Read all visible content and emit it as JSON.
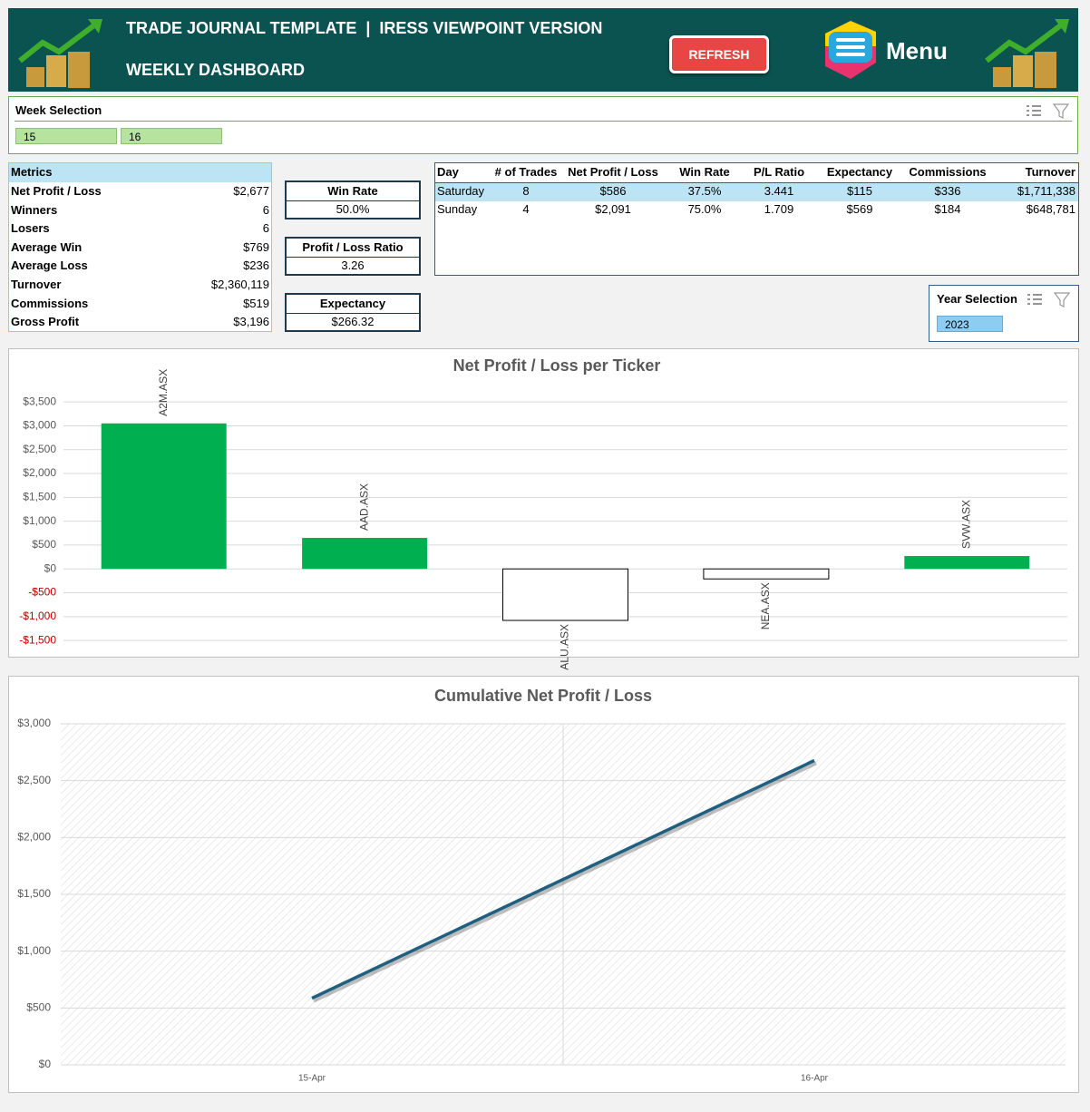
{
  "header": {
    "title": "TRADE JOURNAL TEMPLATE  |  IRESS VIEWPOINT VERSION",
    "subtitle": "WEEKLY DASHBOARD",
    "refresh": "REFRESH",
    "menu": "Menu"
  },
  "week_slicer": {
    "title": "Week Selection",
    "items": [
      "15",
      "16"
    ]
  },
  "metrics": {
    "title": "Metrics",
    "rows": [
      [
        "Net Profit / Loss",
        "$2,677"
      ],
      [
        "Winners",
        "6"
      ],
      [
        "Losers",
        "6"
      ],
      [
        "Average Win",
        "$769"
      ],
      [
        "Average Loss",
        "$236"
      ],
      [
        "Turnover",
        "$2,360,119"
      ],
      [
        "Commissions",
        "$519"
      ],
      [
        "Gross Profit",
        "$3,196"
      ]
    ]
  },
  "kpis": [
    {
      "label": "Win Rate",
      "value": "50.0%"
    },
    {
      "label": "Profit / Loss Ratio",
      "value": "3.26"
    },
    {
      "label": "Expectancy",
      "value": "$266.32"
    }
  ],
  "day_table": {
    "headers": [
      "Day",
      "# of Trades",
      "Net Profit / Loss",
      "Win Rate",
      "P/L Ratio",
      "Expectancy",
      "Commissions",
      "Turnover"
    ],
    "rows": [
      [
        "Saturday",
        "8",
        "$586",
        "37.5%",
        "3.441",
        "$115",
        "$336",
        "$1,711,338"
      ],
      [
        "Sunday",
        "4",
        "$2,091",
        "75.0%",
        "1.709",
        "$569",
        "$184",
        "$648,781"
      ]
    ]
  },
  "year_slicer": {
    "title": "Year Selection",
    "items": [
      "2023"
    ]
  },
  "chart_data": [
    {
      "type": "bar",
      "title": "Net Profit / Loss per Ticker",
      "categories": [
        "A2M.ASX",
        "AAD.ASX",
        "ALU.ASX",
        "NEA.ASX",
        "SVW.ASX"
      ],
      "values": [
        3050,
        650,
        -1080,
        -210,
        270
      ],
      "color": "#00b050",
      "negative_color": "#ffffff",
      "negative_label_color": "#c00000",
      "ylim": [
        -1650,
        3750
      ],
      "yticks": [
        {
          "value": -1500,
          "label": "-$1,500"
        },
        {
          "value": -1000,
          "label": "-$1,000"
        },
        {
          "value": -500,
          "label": "-$500"
        },
        {
          "value": 0,
          "label": "$0"
        },
        {
          "value": 500,
          "label": "$500"
        },
        {
          "value": 1000,
          "label": "$1,000"
        },
        {
          "value": 1500,
          "label": "$1,500"
        },
        {
          "value": 2000,
          "label": "$2,000"
        },
        {
          "value": 2500,
          "label": "$2,500"
        },
        {
          "value": 3000,
          "label": "$3,000"
        },
        {
          "value": 3500,
          "label": "$3,500"
        }
      ],
      "grid": true
    },
    {
      "type": "line",
      "title": "Cumulative Net Profit / Loss",
      "categories": [
        "15-Apr",
        "16-Apr"
      ],
      "values": [
        586,
        2677
      ],
      "color": "#1f5f80",
      "ylim": [
        0,
        3000
      ],
      "yticks": [
        {
          "value": 0,
          "label": "$0"
        },
        {
          "value": 500,
          "label": "$500"
        },
        {
          "value": 1000,
          "label": "$1,000"
        },
        {
          "value": 1500,
          "label": "$1,500"
        },
        {
          "value": 2000,
          "label": "$2,000"
        },
        {
          "value": 2500,
          "label": "$2,500"
        },
        {
          "value": 3000,
          "label": "$3,000"
        }
      ],
      "grid": true
    }
  ]
}
